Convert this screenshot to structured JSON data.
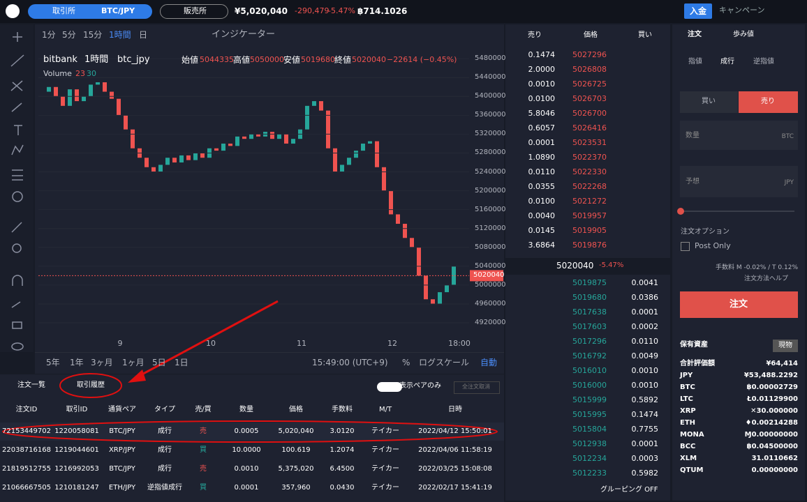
{
  "header": {
    "tab_exchange": "取引所",
    "pair": "BTC/JPY",
    "tab_shop": "販売所",
    "price": "¥5,020,040",
    "change": "-290,479",
    "change_pct": "-5.47%",
    "btc_total": "฿714.1026",
    "deposit": "入金",
    "campaign": "キャンペーン"
  },
  "toolbar": {
    "timeframes": [
      "1分",
      "5分",
      "15分",
      "1時間",
      "日"
    ],
    "indicator": "インジケーター"
  },
  "chart": {
    "type": "candlestick",
    "source": "bitbank",
    "interval": "1時間",
    "symbol": "btc_jpy",
    "legend": [
      {
        "label": "始値",
        "value": "5044335"
      },
      {
        "label": "高値",
        "value": "5050000"
      },
      {
        "label": "安値",
        "value": "5019680"
      },
      {
        "label": "終値",
        "value": "5020040"
      }
    ],
    "legend_change": "−22614 (−0.45%)",
    "volume_label": "Volume",
    "volume_values": [
      "23",
      "30"
    ],
    "closes": [
      5410000,
      5420000,
      5400000,
      5380000,
      5415000,
      5390000,
      5400000,
      5425000,
      5430000,
      5410000,
      5395000,
      5360000,
      5330000,
      5290000,
      5270000,
      5250000,
      5240000,
      5255000,
      5270000,
      5260000,
      5275000,
      5265000,
      5280000,
      5270000,
      5290000,
      5285000,
      5300000,
      5295000,
      5315000,
      5310000,
      5320000,
      5315000,
      5325000,
      5310000,
      5320000,
      5300000,
      5310000,
      5330000,
      5380000,
      5390000,
      5370000,
      5290000,
      5240000,
      5255000,
      5270000,
      5285000,
      5300000,
      5305000,
      5250000,
      5200000,
      5150000,
      5130000,
      5100000,
      5080000,
      5020000,
      4970000,
      4960000,
      4985000,
      5000000,
      5040000
    ],
    "up_color": "#26a69a",
    "down_color": "#ef5350",
    "ylim": [
      4892000,
      5498000
    ],
    "yticks": [
      5480000,
      5440000,
      5400000,
      5360000,
      5320000,
      5280000,
      5240000,
      5200000,
      5160000,
      5120000,
      5080000,
      5040000,
      5000000,
      4960000,
      4920000
    ],
    "last_price": 5020040,
    "xlabels": [
      "9",
      "10",
      "11",
      "12",
      "18:00"
    ],
    "ranges": [
      "5年",
      "1年",
      "3ヶ月",
      "1ヶ月",
      "5日",
      "1日"
    ],
    "time": "15:49:00 (UTC+9)",
    "percent": "%",
    "log_scale": "ログスケール",
    "auto": "自動"
  },
  "orderbook": {
    "headers": [
      "売り",
      "価格",
      "買い"
    ],
    "asks": [
      [
        "0.1474",
        "5027296"
      ],
      [
        "2.0000",
        "5026808"
      ],
      [
        "0.0010",
        "5026725"
      ],
      [
        "0.0100",
        "5026703"
      ],
      [
        "5.8046",
        "5026700"
      ],
      [
        "0.6057",
        "5026416"
      ],
      [
        "0.0001",
        "5023531"
      ],
      [
        "1.0890",
        "5022370"
      ],
      [
        "0.0110",
        "5022330"
      ],
      [
        "0.0355",
        "5022268"
      ],
      [
        "0.0100",
        "5021272"
      ],
      [
        "0.0040",
        "5019957"
      ],
      [
        "0.0145",
        "5019905"
      ],
      [
        "3.6864",
        "5019876"
      ]
    ],
    "mid": "5020040",
    "mid_change": "-5.47%",
    "bids": [
      [
        "5019875",
        "0.0041"
      ],
      [
        "5019680",
        "0.0386"
      ],
      [
        "5017638",
        "0.0001"
      ],
      [
        "5017603",
        "0.0002"
      ],
      [
        "5017296",
        "0.0110"
      ],
      [
        "5016792",
        "0.0049"
      ],
      [
        "5016010",
        "0.0010"
      ],
      [
        "5016000",
        "0.0010"
      ],
      [
        "5015999",
        "0.5892"
      ],
      [
        "5015995",
        "0.1474"
      ],
      [
        "5015804",
        "0.7755"
      ],
      [
        "5012938",
        "0.0001"
      ],
      [
        "5012234",
        "0.0003"
      ],
      [
        "5012233",
        "0.5982"
      ]
    ],
    "grouping": "グルーピング OFF"
  },
  "order": {
    "tabs": [
      "注文",
      "歩み値"
    ],
    "types": [
      "指値",
      "成行",
      "逆指値"
    ],
    "buy": "買い",
    "sell": "売り",
    "qty": "数量",
    "qty_unit": "BTC",
    "est": "予想",
    "est_unit": "JPY",
    "options": "注文オプション",
    "post_only": "Post Only",
    "fee": "手数料 M -0.02% / T 0.12%",
    "help": "注文方法ヘルプ",
    "submit": "注文"
  },
  "assets": {
    "title": "保有資産",
    "spot": "現物",
    "rows": [
      [
        "合計評価額",
        "¥64,414"
      ],
      [
        "JPY",
        "¥53,488.2292"
      ],
      [
        "BTC",
        "฿0.00002729"
      ],
      [
        "LTC",
        "Ł0.01129900"
      ],
      [
        "XRP",
        "✕30.000000"
      ],
      [
        "ETH",
        "♦0.00214288"
      ],
      [
        "MONA",
        "Ɱ0.00000000"
      ],
      [
        "BCC",
        "฿0.04500000"
      ],
      [
        "XLM",
        "31.0110662"
      ],
      [
        "QTUM",
        "0.00000000"
      ]
    ]
  },
  "history": {
    "tabs": [
      "注文一覧",
      "取引履歴"
    ],
    "pair_only": "表示ペアのみ",
    "cancel_all": "全注文取消",
    "columns": [
      "注文ID",
      "取引ID",
      "通貨ペア",
      "タイプ",
      "売/買",
      "数量",
      "価格",
      "手数料",
      "M/T",
      "日時"
    ],
    "rows": [
      [
        "72153449702",
        "1220058081",
        "BTC/JPY",
        "成行",
        "売",
        "0.0005",
        "5,020,040",
        "3.0120",
        "テイカー",
        "2022/04/12 15:50:01"
      ],
      [
        "22038716168",
        "1219044601",
        "XRP/JPY",
        "成行",
        "買",
        "10.0000",
        "100.619",
        "1.2074",
        "テイカー",
        "2022/04/06 11:58:19"
      ],
      [
        "21819512755",
        "1216992053",
        "BTC/JPY",
        "成行",
        "売",
        "0.0010",
        "5,375,020",
        "6.4500",
        "テイカー",
        "2022/03/25 15:08:08"
      ],
      [
        "21066667505",
        "1210181247",
        "ETH/JPY",
        "逆指値成行",
        "買",
        "0.0001",
        "357,960",
        "0.0430",
        "テイカー",
        "2022/02/17 15:41:19"
      ]
    ]
  }
}
